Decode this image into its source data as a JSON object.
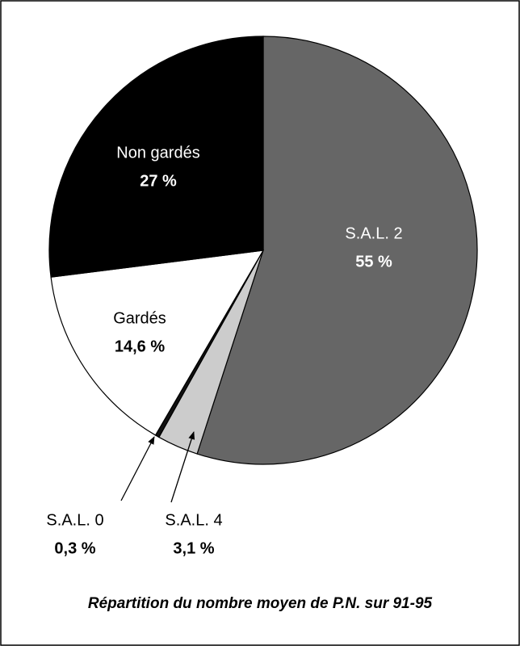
{
  "chart_data": {
    "type": "pie",
    "title": "Répartition du nombre moyen de P.N. sur 91-95",
    "categories": [
      "S.A.L. 2",
      "S.A.L. 4",
      "S.A.L. 0",
      "Gardés",
      "Non gardés"
    ],
    "values": [
      55,
      3.1,
      0.3,
      14.6,
      27
    ],
    "value_labels": [
      "55 %",
      "3,1 %",
      "0,3 %",
      "14,6 %",
      "27 %"
    ],
    "colors": [
      "#666666",
      "#cccccc",
      "#111111",
      "#ffffff",
      "#000000"
    ]
  }
}
